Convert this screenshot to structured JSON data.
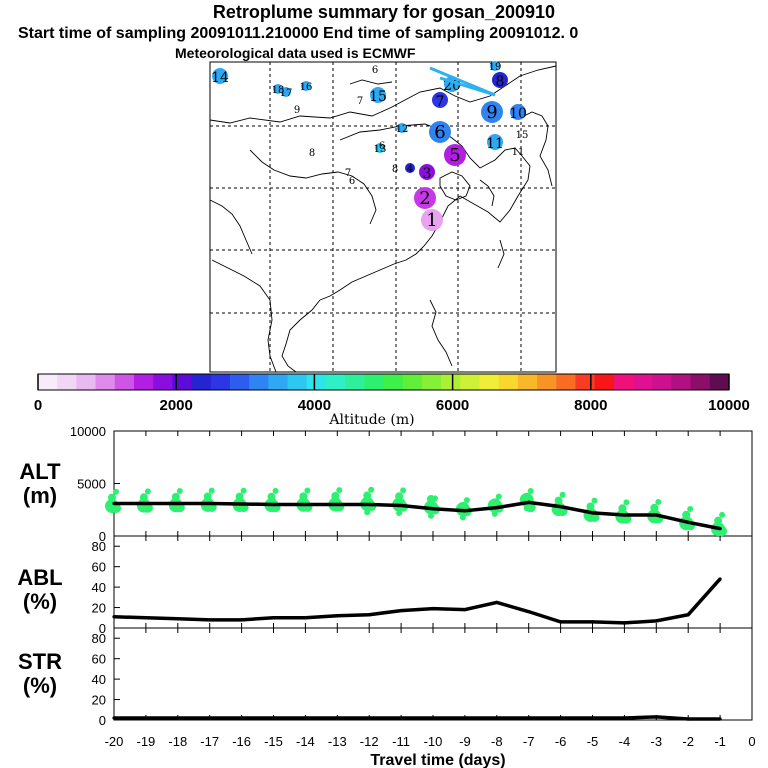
{
  "header": {
    "title": "Retroplume summary for gosan_200910",
    "line2": "Start time of sampling 20091011.210000      End time of sampling 20091012.      0",
    "line3": "Meteorological data used is ECMWF"
  },
  "colorbar": {
    "axis_label": "Altitude  (m)",
    "tick_labels": [
      "0",
      "2000",
      "4000",
      "6000",
      "8000",
      "10000"
    ],
    "tick_values": [
      0,
      2000,
      4000,
      6000,
      8000,
      10000
    ],
    "colors": [
      "#f8ecfa",
      "#f2d6f6",
      "#e9b9f1",
      "#e08aeb",
      "#cf55e6",
      "#b31fe2",
      "#8a0fde",
      "#5d0bd8",
      "#2424d0",
      "#2d36e4",
      "#2e5cec",
      "#2f84f2",
      "#2ea8f2",
      "#2dc8ef",
      "#2ee6ea",
      "#2ef0c4",
      "#2ef09a",
      "#2ef070",
      "#3ef04a",
      "#60f03a",
      "#86f036",
      "#acf036",
      "#d0f038",
      "#f0ee36",
      "#f8d82e",
      "#f8b82a",
      "#f89426",
      "#f86c24",
      "#f83c24",
      "#f81616",
      "#f0107c",
      "#e01090",
      "#cc1090",
      "#b01080",
      "#8a0e6a",
      "#600c50"
    ]
  },
  "map": {
    "markers": [
      {
        "label": "1",
        "color": "#e8a2ef",
        "size": "large"
      },
      {
        "label": "2",
        "color": "#c63ae6",
        "size": "large"
      },
      {
        "label": "3",
        "color": "#8a0fde",
        "size": "medium"
      },
      {
        "label": "4",
        "color": "#2424d0",
        "size": "small"
      },
      {
        "label": "5",
        "color": "#b31fe2",
        "size": "large"
      },
      {
        "label": "6",
        "color": "#2f84f2",
        "size": "large"
      },
      {
        "label": "7",
        "color": "#2d36e4",
        "size": "medium"
      },
      {
        "label": "8",
        "color": "#2424d0",
        "size": "medium"
      },
      {
        "label": "9",
        "color": "#2f84f2",
        "size": "large"
      },
      {
        "label": "10",
        "color": "#2f84f2",
        "size": "medium"
      },
      {
        "label": "11",
        "color": "#2ea8f2",
        "size": "medium"
      },
      {
        "label": "12",
        "color": "#2ea8f2",
        "size": "small"
      },
      {
        "label": "13",
        "color": "#2dc8ef",
        "size": "small"
      },
      {
        "label": "14",
        "color": "#2ea8f2",
        "size": "medium"
      },
      {
        "label": "15",
        "color": "#2ea8f2",
        "size": "medium"
      },
      {
        "label": "16",
        "color": "#2ea8f2",
        "size": "small"
      },
      {
        "label": "17",
        "color": "#2ea8f2",
        "size": "small"
      },
      {
        "label": "18",
        "color": "#2ea8f2",
        "size": "small"
      },
      {
        "label": "19",
        "color": "#2ea8f2",
        "size": "small"
      },
      {
        "label": "20",
        "color": "#2ea8f2",
        "size": "medium"
      }
    ]
  },
  "panels": {
    "alt": {
      "label_top": "ALT",
      "label_bottom": "(m)"
    },
    "abl": {
      "label_top": "ABL",
      "label_bottom": "(%)"
    },
    "str": {
      "label_top": "STR",
      "label_bottom": "(%)"
    },
    "xlabel": "Travel time (days)"
  },
  "chart_data": [
    {
      "type": "line",
      "title": "ALT (m)",
      "xlabel": "Travel time (days)",
      "ylabel": "ALT (m)",
      "xlim": [
        -20,
        0
      ],
      "ylim": [
        0,
        10000
      ],
      "y_ticks": [
        0,
        5000,
        10000
      ],
      "x": [
        -20,
        -19,
        -18,
        -17,
        -16,
        -15,
        -14,
        -13,
        -12,
        -11,
        -10,
        -9,
        -8,
        -7,
        -6,
        -5,
        -4,
        -3,
        -2,
        -1
      ],
      "values": [
        3100,
        3100,
        3100,
        3100,
        3050,
        3000,
        3000,
        3000,
        3000,
        2900,
        2600,
        2400,
        2700,
        3200,
        2800,
        2200,
        2000,
        2000,
        1300,
        700
      ],
      "scatter_color": "#2ef070"
    },
    {
      "type": "line",
      "title": "ABL (%)",
      "xlabel": "Travel time (days)",
      "ylabel": "ABL (%)",
      "xlim": [
        -20,
        0
      ],
      "ylim": [
        0,
        90
      ],
      "y_ticks": [
        0,
        20,
        40,
        60,
        80
      ],
      "x": [
        -20,
        -19,
        -18,
        -17,
        -16,
        -15,
        -14,
        -13,
        -12,
        -11,
        -10,
        -9,
        -8,
        -7,
        -6,
        -5,
        -4,
        -3,
        -2,
        -1
      ],
      "values": [
        11,
        10,
        9,
        8,
        8,
        10,
        10,
        12,
        13,
        17,
        19,
        18,
        25,
        16,
        6,
        6,
        5,
        7,
        13,
        48
      ]
    },
    {
      "type": "line",
      "title": "STR (%)",
      "xlabel": "Travel time (days)",
      "ylabel": "STR (%)",
      "xlim": [
        -20,
        0
      ],
      "ylim": [
        0,
        90
      ],
      "y_ticks": [
        0,
        20,
        40,
        60,
        80
      ],
      "x": [
        -20,
        -19,
        -18,
        -17,
        -16,
        -15,
        -14,
        -13,
        -12,
        -11,
        -10,
        -9,
        -8,
        -7,
        -6,
        -5,
        -4,
        -3,
        -2,
        -1
      ],
      "values": [
        2,
        2,
        2,
        2,
        2,
        2,
        2,
        2,
        2,
        2,
        2,
        2,
        2,
        2,
        2,
        2,
        2,
        3,
        1,
        1
      ]
    }
  ],
  "x_tick_labels": [
    "-20",
    "-19",
    "-18",
    "-17",
    "-16",
    "-15",
    "-14",
    "-13",
    "-12",
    "-11",
    "-10",
    "-9",
    "-8",
    "-7",
    "-6",
    "-5",
    "-4",
    "-3",
    "-2",
    "-1",
    "0"
  ]
}
